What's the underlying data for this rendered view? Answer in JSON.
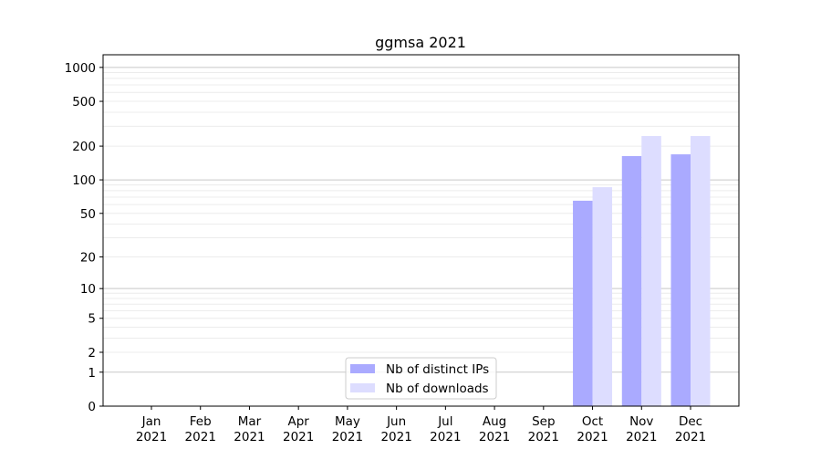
{
  "chart_data": {
    "type": "bar",
    "title": "ggmsa 2021",
    "xlabel": "",
    "ylabel": "",
    "yscale": "log10(1+y)",
    "ylim": [
      0,
      1300
    ],
    "yticks": [
      0,
      1,
      2,
      5,
      10,
      20,
      50,
      100,
      200,
      500,
      1000
    ],
    "grid": true,
    "legend_position": "bottom-center",
    "categories": [
      "Jan\n2021",
      "Feb\n2021",
      "Mar\n2021",
      "Apr\n2021",
      "May\n2021",
      "Jun\n2021",
      "Jul\n2021",
      "Aug\n2021",
      "Sep\n2021",
      "Oct\n2021",
      "Nov\n2021",
      "Dec\n2021"
    ],
    "series": [
      {
        "name": "Nb of distinct IPs",
        "color": "#aaaaff",
        "values": [
          0,
          0,
          0,
          0,
          0,
          0,
          0,
          0,
          0,
          65,
          163,
          169
        ]
      },
      {
        "name": "Nb of downloads",
        "color": "#ddddff",
        "values": [
          0,
          0,
          0,
          0,
          0,
          0,
          0,
          0,
          0,
          86,
          246,
          246
        ]
      }
    ]
  }
}
